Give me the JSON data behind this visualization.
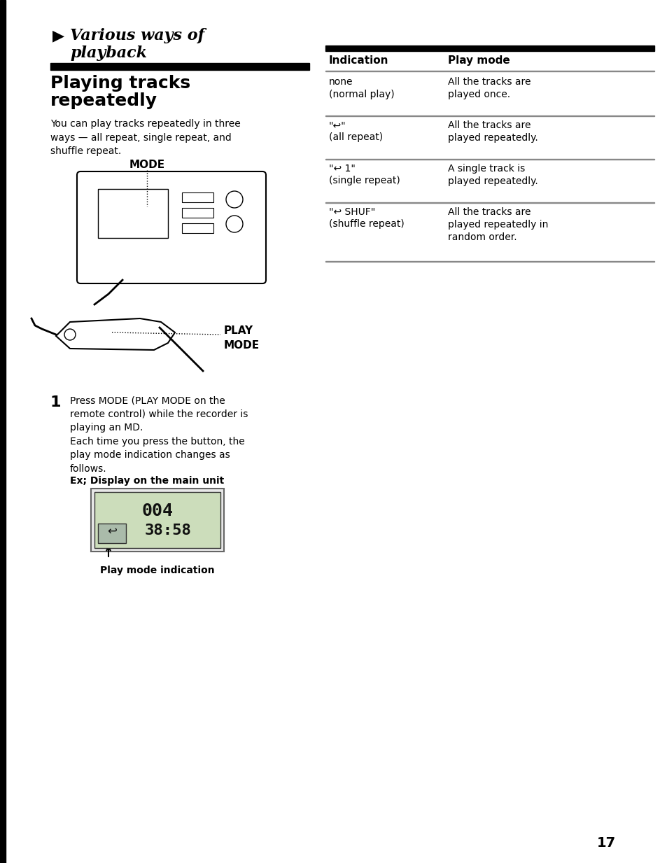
{
  "page_number": "17",
  "background_color": "#ffffff",
  "section_title": "► Various ways of\n   playback",
  "subsection_title": "Playing tracks\nrepeatedly",
  "body_text": "You can play tracks repeatedly in three\nways — all repeat, single repeat́, and\nshuffle repeat.",
  "mode_label": "MODE",
  "play_mode_label": "PLAY\nMODE",
  "step1_text": "Press MODE (PLAY MODE on the\nremote control) while the recorder is\nplaying an MD.\nEach time you press the button, the\nplay mode indication changes as\nfollows.",
  "display_label": "Ex; Display on the main unit",
  "play_mode_indication_label": "Play mode indication",
  "table_header_col1": "Indication",
  "table_header_col2": "Play mode",
  "table_rows": [
    {
      "indication": "none\n(normal play)",
      "play_mode": "All the tracks are\nplayed once."
    },
    {
      "indication": "\"↩\"\n(all repeat)",
      "play_mode": "All the tracks are\nplayed repeatedly."
    },
    {
      "indication": "\"↩ 1\"\n(single repeat)",
      "play_mode": "A single track is\nplayed repeatedly."
    },
    {
      "indication": "\"↩ SHUF\"\n(shuffle repeat)",
      "play_mode": "All the tracks are\nplayed repeatedly in\nrandom order."
    }
  ],
  "black_bar_color": "#000000",
  "text_color": "#000000",
  "table_line_color": "#888888",
  "left_margin_bar_color": "#000000"
}
